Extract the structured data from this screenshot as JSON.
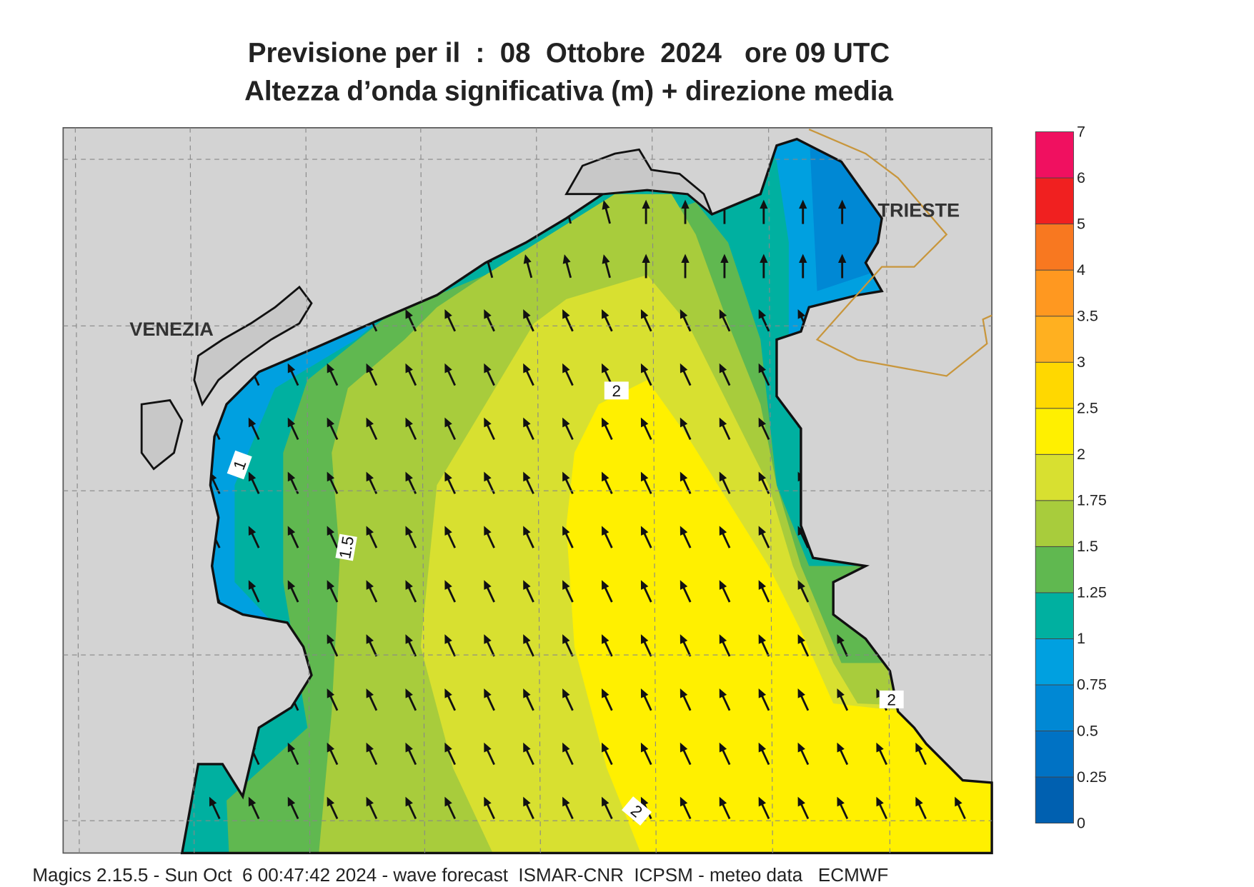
{
  "header": {
    "title": "Previsione per il  :  08  Ottobre  2024   ore 09 UTC",
    "subtitle": "Altezza d’onda significativa (m) + direzione media"
  },
  "map": {
    "cities": [
      "VENEZIA",
      "TRIESTE"
    ],
    "contour_labels": [
      "1",
      "1.5",
      "2",
      "2",
      "2"
    ]
  },
  "legend": {
    "levels": [
      0,
      0.25,
      0.5,
      0.75,
      1,
      1.25,
      1.5,
      1.75,
      2,
      2.5,
      3,
      3.5,
      4,
      5,
      6,
      7
    ],
    "colors": [
      "#0060b0",
      "#0072c4",
      "#0088d4",
      "#00a0e0",
      "#00b0a0",
      "#60b850",
      "#a8cc3c",
      "#d8e030",
      "#fff000",
      "#ffd800",
      "#ffb020",
      "#ff9820",
      "#f87820",
      "#f02020",
      "#f01060"
    ]
  },
  "footer": "Magics 2.15.5 - Sun Oct  6 00:47:42 2024 - wave forecast  ISMAR-CNR  ICPSM - meteo data   ECMWF"
}
